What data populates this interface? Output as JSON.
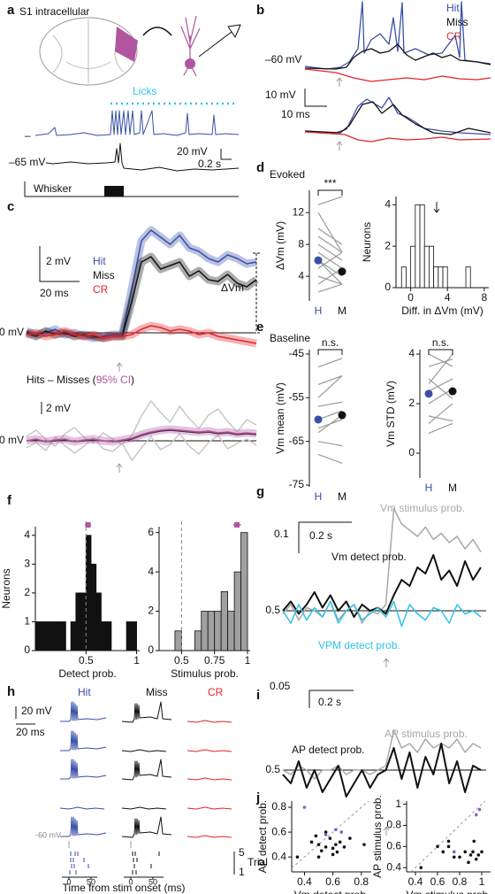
{
  "panels": {
    "letters": [
      "a",
      "b",
      "c",
      "d",
      "e",
      "f",
      "g",
      "h",
      "i",
      "j"
    ],
    "a": {
      "title": "S1 intracellular",
      "licks": "Licks",
      "scale_v": "20 mV",
      "scale_t": "0.2 s",
      "vrest": "–65 mV",
      "whisker": "Whisker"
    },
    "b": {
      "legend": [
        "Hit",
        "Miss",
        "CR"
      ],
      "vrest": "–60 mV",
      "scale_v": "10 mV",
      "scale_t": "10 ms"
    },
    "c": {
      "scale_v": "2 mV",
      "scale_t": "20 ms",
      "delta": "ΔVm",
      "scale_v2": "2 mV"
    },
    "d": {
      "title": "Evoked"
    },
    "e": {
      "title": "Baseline"
    },
    "g": {
      "scale_v": "0.1",
      "scale_t": "0.2 s"
    },
    "h": {
      "columns": [
        "Hit",
        "Miss",
        "CR"
      ],
      "scale_v": "20 mV",
      "scale_t": "20 ms",
      "vrest": "-60 mV",
      "trial_top": "5",
      "trial": "Trial",
      "trial_bottom": "1",
      "xticks": [
        "0",
        "50",
        "0",
        "50"
      ],
      "xlabel": "Time from stim onset (ms)"
    },
    "i": {
      "scale_v": "0.05",
      "scale_t": "0.2 s"
    }
  },
  "chart_data": [
    {
      "type": "line",
      "xlim": [
        -50,
        70
      ],
      "ylim": [
        -1.5,
        6.5
      ],
      "yticks": [
        {
          "value": 0,
          "label": "0 mV"
        }
      ],
      "x": [
        -50,
        -45,
        -40,
        -35,
        -30,
        -25,
        -20,
        -15,
        -10,
        -5,
        0,
        5,
        10,
        15,
        20,
        25,
        30,
        35,
        40,
        45,
        50,
        55,
        60,
        65,
        70
      ],
      "series": [
        {
          "name": "Hit",
          "color": "#3a4fa8",
          "values": [
            0.1,
            -0.1,
            0,
            0.2,
            -0.1,
            0,
            -0.2,
            -0.3,
            -0.2,
            -0.1,
            -0.1,
            2.5,
            5.2,
            5.8,
            5.4,
            5.0,
            5.5,
            4.8,
            4.6,
            4.2,
            4.0,
            4.4,
            4.2,
            3.9,
            4.0
          ]
        },
        {
          "name": "Miss",
          "color": "#111111",
          "values": [
            0,
            -0.2,
            0.1,
            -0.1,
            0,
            -0.2,
            -0.1,
            -0.2,
            -0.3,
            -0.2,
            -0.2,
            1.8,
            4.0,
            4.3,
            3.6,
            3.8,
            4.0,
            3.2,
            3.5,
            3.0,
            2.9,
            3.3,
            2.8,
            2.6,
            3.0
          ]
        },
        {
          "name": "CR",
          "color": "#e0262b",
          "values": [
            -0.1,
            0,
            -0.2,
            -0.1,
            0.1,
            -0.1,
            -0.2,
            -0.1,
            -0.3,
            -0.2,
            -0.2,
            -0.1,
            0.2,
            0.4,
            0.3,
            0.1,
            0.2,
            0.1,
            -0.1,
            0,
            -0.2,
            -0.3,
            -0.4,
            -0.5,
            -0.6
          ]
        }
      ]
    },
    {
      "type": "line",
      "title": [
        "Hits – Misses (",
        "95% CI",
        ")"
      ],
      "title_colors": [
        "#111111",
        "#b0559e",
        "#111111"
      ],
      "xlim": [
        -50,
        70
      ],
      "ylim": [
        -2.5,
        6
      ],
      "yticks": [
        {
          "value": 0,
          "label": "0 mV"
        }
      ],
      "x": [
        -50,
        -45,
        -40,
        -35,
        -30,
        -25,
        -20,
        -15,
        -10,
        -5,
        0,
        5,
        10,
        15,
        20,
        25,
        30,
        35,
        40,
        45,
        50,
        55,
        60,
        65,
        70
      ],
      "series": [
        {
          "color": "#c8c8c8",
          "values": [
            0.5,
            1.2,
            0.2,
            -0.6,
            0.8,
            1.5,
            0.4,
            -0.3,
            0.9,
            0.2,
            -0.4,
            0.6,
            2.8,
            4.5,
            3.2,
            2.1,
            3.9,
            2.5,
            1.4,
            2.9,
            3.6,
            2.2,
            1.0,
            2.4,
            1.8
          ]
        },
        {
          "color": "#c8c8c8",
          "values": [
            -0.8,
            -0.2,
            -1.1,
            0.4,
            -0.5,
            -1.4,
            -0.6,
            0.3,
            -0.9,
            -1.2,
            -0.3,
            -2.2,
            -0.8,
            0.5,
            -1.0,
            -0.4,
            0.8,
            -0.6,
            -1.5,
            -0.2,
            0.6,
            -0.9,
            -0.3,
            0.2,
            -0.5
          ]
        },
        {
          "color": "#111111",
          "values": [
            0,
            0.1,
            -0.1,
            0,
            0.1,
            -0.1,
            0,
            0.1,
            0,
            -0.1,
            0,
            0.2,
            0.6,
            0.9,
            1.1,
            1.2,
            1.1,
            1.0,
            0.9,
            1.0,
            0.8,
            0.9,
            0.7,
            0.8,
            0.7
          ]
        },
        {
          "color": "#b0559e",
          "values": [
            0,
            0.2,
            -0.1,
            0.1,
            0.2,
            -0.1,
            0.1,
            0.2,
            0,
            -0.1,
            0.1,
            0.3,
            0.7,
            1.0,
            1.2,
            1.3,
            1.2,
            1.1,
            1.0,
            1.1,
            0.9,
            1.0,
            0.8,
            0.9,
            0.8
          ]
        }
      ]
    },
    {
      "type": "dots",
      "ylabel": "ΔVm (mV)",
      "ylim": [
        0.9,
        14.8
      ],
      "yticks": [
        4,
        8,
        12
      ],
      "categories": [
        "H",
        "M"
      ],
      "colors": [
        "#3a4fa8",
        "#111111"
      ],
      "values": [
        6,
        4.6
      ],
      "annotation": "***",
      "pairs": [
        [
          2,
          3
        ],
        [
          3,
          5
        ],
        [
          4,
          3
        ],
        [
          5,
          7
        ],
        [
          6,
          4
        ],
        [
          7,
          5
        ],
        [
          8,
          6
        ],
        [
          9,
          7
        ],
        [
          10,
          8
        ],
        [
          12,
          7
        ],
        [
          13,
          14
        ],
        [
          6,
          3
        ]
      ]
    },
    {
      "type": "hist",
      "xlabel": "Diff. in ΔVm (mV)",
      "ylabel": "Neurons",
      "xlim": [
        -1.6,
        8.5
      ],
      "ylim": [
        0,
        4.4
      ],
      "xticks": [
        0,
        4,
        8
      ],
      "yticks": [
        0,
        2,
        4
      ],
      "color": "#ffffff",
      "bins": [
        -1,
        -0.5,
        0,
        0.5,
        1,
        1.5,
        2,
        2.5,
        3,
        3.5,
        4,
        4.5,
        5,
        5.5,
        6,
        6.5
      ],
      "counts": [
        1,
        0,
        2,
        4,
        4,
        2,
        2,
        1,
        1,
        1,
        0,
        0,
        0,
        0,
        1
      ]
    },
    {
      "type": "dots",
      "ylabel": "Vm mean (mV)",
      "ylim": [
        -75.4,
        -44
      ],
      "yticks": [
        -75,
        -65,
        -55,
        -45
      ],
      "categories": [
        "H",
        "M"
      ],
      "colors": [
        "#3a4fa8",
        "#111111"
      ],
      "values": [
        -60,
        -59
      ],
      "annotation": "n.s.",
      "pairs": [
        [
          -68,
          -70
        ],
        [
          -65,
          -66
        ],
        [
          -62,
          -60
        ],
        [
          -60,
          -58
        ],
        [
          -57,
          -56
        ],
        [
          -55,
          -50
        ],
        [
          -52,
          -50
        ],
        [
          -48,
          -46
        ],
        [
          -63,
          -59
        ]
      ]
    },
    {
      "type": "dots",
      "ylabel": "Vm STD (mV)",
      "ylim": [
        -1,
        4.18
      ],
      "yticks": [
        0,
        2,
        4
      ],
      "categories": [
        "H",
        "M"
      ],
      "colors": [
        "#3a4fa8",
        "#111111"
      ],
      "values": [
        2.4,
        2.5
      ],
      "annotation": "n.s.",
      "pairs": [
        [
          0.8,
          1.2
        ],
        [
          1.5,
          1.3
        ],
        [
          2,
          2.6
        ],
        [
          2.5,
          3
        ],
        [
          3,
          2.2
        ],
        [
          3.5,
          3.8
        ],
        [
          1.2,
          2
        ],
        [
          2.8,
          4
        ],
        [
          4,
          3.5
        ]
      ]
    },
    {
      "type": "hist",
      "xlabel": "Detect prob.",
      "ylabel": "Neurons",
      "xlim": [
        0,
        1.03
      ],
      "ylim": [
        0,
        4.3
      ],
      "xticks": [
        0.5,
        1
      ],
      "yticks": [
        0,
        1,
        2,
        3,
        4
      ],
      "color": "#111111",
      "reference": 0.5,
      "marker": {
        "value": 0.52,
        "error": 0.03,
        "color": "#b0559e"
      },
      "bins": [
        0,
        0.05,
        0.1,
        0.15,
        0.2,
        0.25,
        0.3,
        0.35,
        0.4,
        0.45,
        0.5,
        0.55,
        0.6,
        0.65,
        0.7,
        0.75,
        0.8,
        0.85,
        0.9,
        0.95,
        1
      ],
      "counts": [
        1,
        1,
        1,
        1,
        1,
        1,
        0,
        1,
        2,
        2,
        4,
        3,
        2,
        1,
        1,
        0,
        0,
        0,
        1,
        1
      ]
    },
    {
      "type": "hist",
      "xlabel": "Stimulus prob.",
      "xlim": [
        0.33,
        1.02
      ],
      "ylim": [
        0,
        6.3
      ],
      "xticks": [
        0.5,
        0.75,
        1
      ],
      "yticks": [
        0,
        2,
        4,
        6
      ],
      "color": "#a0a0a0",
      "reference": 0.5,
      "marker": {
        "value": 0.92,
        "error": 0.03,
        "color": "#b0559e"
      },
      "bins": [
        0.45,
        0.5,
        0.55,
        0.6,
        0.65,
        0.7,
        0.75,
        0.8,
        0.85,
        0.9,
        0.95,
        1
      ],
      "counts": [
        1,
        0,
        0,
        1,
        2,
        2,
        2,
        3,
        2,
        4,
        6
      ]
    },
    {
      "type": "line",
      "xlim": [
        -0.39,
        0.38
      ],
      "ylim": [
        0.357,
        0.843
      ],
      "yticks": [
        0.5
      ],
      "x": [
        -0.39,
        -0.36,
        -0.33,
        -0.3,
        -0.27,
        -0.24,
        -0.21,
        -0.18,
        -0.15,
        -0.12,
        -0.09,
        -0.06,
        -0.03,
        0,
        0.03,
        0.06,
        0.09,
        0.12,
        0.15,
        0.18,
        0.21,
        0.24,
        0.27,
        0.3,
        0.33,
        0.36
      ],
      "series": [
        {
          "name": "Vm stimulus prob.",
          "color": "#a8a8a8",
          "values": [
            0.49,
            0.52,
            0.47,
            0.51,
            0.5,
            0.48,
            0.53,
            0.47,
            0.5,
            0.52,
            0.46,
            0.5,
            0.49,
            0.52,
            0.83,
            0.78,
            0.76,
            0.74,
            0.77,
            0.73,
            0.75,
            0.72,
            0.74,
            0.7,
            0.73,
            0.69
          ]
        },
        {
          "name": "Vm detect prob.",
          "color": "#111111",
          "values": [
            0.5,
            0.53,
            0.49,
            0.52,
            0.56,
            0.51,
            0.55,
            0.5,
            0.53,
            0.48,
            0.52,
            0.5,
            0.51,
            0.49,
            0.55,
            0.6,
            0.58,
            0.64,
            0.62,
            0.68,
            0.6,
            0.63,
            0.58,
            0.66,
            0.6,
            0.64
          ]
        },
        {
          "name": "VPM detect prob.",
          "color": "#2ec4e6",
          "values": [
            0.5,
            0.46,
            0.52,
            0.47,
            0.51,
            0.48,
            0.53,
            0.46,
            0.5,
            0.52,
            0.47,
            0.49,
            0.51,
            0.48,
            0.53,
            0.45,
            0.52,
            0.49,
            0.47,
            0.51,
            0.5,
            0.46,
            0.52,
            0.49,
            0.5,
            0.48
          ]
        }
      ]
    },
    {
      "type": "line",
      "xlim": [
        -0.39,
        0.38
      ],
      "ylim": [
        0.38,
        0.6
      ],
      "yticks": [
        0.5
      ],
      "x": [
        -0.39,
        -0.36,
        -0.33,
        -0.3,
        -0.27,
        -0.24,
        -0.21,
        -0.18,
        -0.15,
        -0.12,
        -0.09,
        -0.06,
        -0.03,
        0,
        0.03,
        0.06,
        0.09,
        0.12,
        0.15,
        0.18,
        0.21,
        0.24,
        0.27,
        0.3,
        0.33,
        0.36
      ],
      "series": [
        {
          "name": "AP stimulus prob.",
          "color": "#a8a8a8",
          "values": [
            0.5,
            0.49,
            0.51,
            0.5,
            0.48,
            0.5,
            0.5,
            0.51,
            0.49,
            0.5,
            0.5,
            0.49,
            0.5,
            0.51,
            0.59,
            0.55,
            0.56,
            0.54,
            0.57,
            0.55,
            0.56,
            0.55,
            0.57,
            0.54,
            0.56,
            0.55
          ]
        },
        {
          "name": "AP detect prob.",
          "color": "#111111",
          "values": [
            0.49,
            0.47,
            0.52,
            0.46,
            0.5,
            0.45,
            0.48,
            0.51,
            0.44,
            0.47,
            0.5,
            0.46,
            0.49,
            0.5,
            0.55,
            0.48,
            0.54,
            0.46,
            0.53,
            0.49,
            0.56,
            0.47,
            0.52,
            0.45,
            0.51,
            0.5
          ]
        }
      ]
    },
    {
      "type": "scatter",
      "xlabel": "Vm detect prob.",
      "ylabel": "AP detect prob.",
      "xlim": [
        0.31,
        0.87
      ],
      "ylim": [
        0.28,
        0.85
      ],
      "xticks": [
        0.4,
        0.6,
        0.8
      ],
      "yticks": [
        0.4,
        0.6,
        0.8
      ],
      "diagonal": true,
      "series": [
        {
          "color": "#111111",
          "x": [
            0.45,
            0.5,
            0.52,
            0.55,
            0.58,
            0.6,
            0.62,
            0.63,
            0.65,
            0.55,
            0.68,
            0.72,
            0.6,
            0.5,
            0.82,
            0.35,
            0.48
          ],
          "y": [
            0.52,
            0.5,
            0.45,
            0.48,
            0.55,
            0.47,
            0.5,
            0.44,
            0.52,
            0.6,
            0.48,
            0.55,
            0.42,
            0.4,
            0.5,
            0.4,
            0.57
          ]
        },
        {
          "color": "#8a5fc0",
          "x": [
            0.4,
            0.55,
            0.62,
            0.66
          ],
          "y": [
            0.8,
            0.58,
            0.62,
            0.6
          ]
        }
      ]
    },
    {
      "type": "scatter",
      "xlabel": "Vm stimulus prob.",
      "ylabel": "AP stimulus prob.",
      "xlim": [
        0.32,
        1.08
      ],
      "ylim": [
        0.36,
        1.03
      ],
      "xticks": [
        0.4,
        0.6,
        0.8,
        1
      ],
      "yticks": [
        0.4,
        0.6,
        0.8,
        1
      ],
      "diagonal": true,
      "series": [
        {
          "color": "#111111",
          "x": [
            0.45,
            0.6,
            0.65,
            0.7,
            0.75,
            0.8,
            0.85,
            0.9,
            0.92,
            0.95,
            0.97,
            1.0,
            0.88,
            0.7,
            0.93
          ],
          "y": [
            0.4,
            0.6,
            0.55,
            0.65,
            0.5,
            0.5,
            0.55,
            0.52,
            0.55,
            0.48,
            0.52,
            0.55,
            0.45,
            0.6,
            0.65
          ]
        },
        {
          "color": "#8a5fc0",
          "x": [
            0.75,
            0.95,
            0.98
          ],
          "y": [
            0.55,
            0.9,
            0.95
          ]
        }
      ]
    }
  ]
}
